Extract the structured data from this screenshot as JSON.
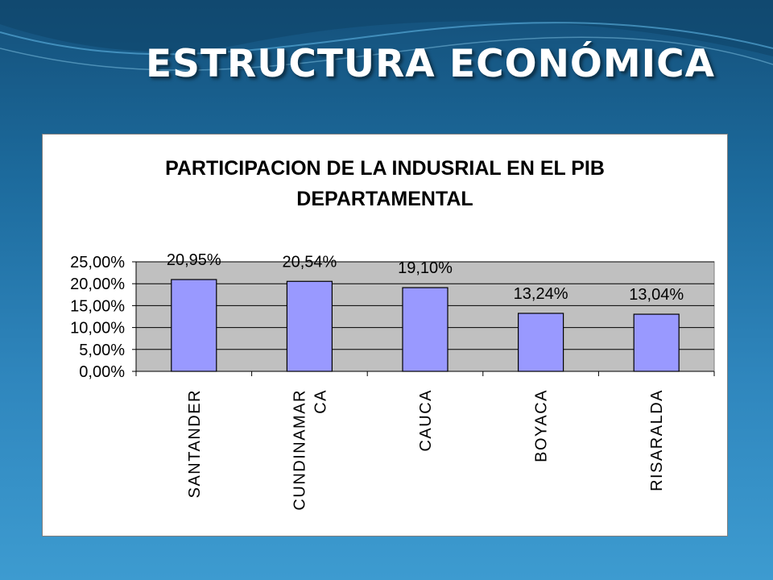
{
  "slide": {
    "title": "ESTRUCTURA ECONÓMICA"
  },
  "colors": {
    "bar_fill": "#9999ff",
    "plot_area": "#c0c0c0",
    "background": "#2f86bd"
  },
  "chart_data": {
    "type": "bar",
    "title_lines": [
      "PARTICIPACION DE LA INDUSRIAL EN EL PIB",
      "DEPARTAMENTAL"
    ],
    "categories": [
      [
        "SANTANDER"
      ],
      [
        "CUNDINAMAR",
        "CA"
      ],
      [
        "CAUCA"
      ],
      [
        "BOYACA"
      ],
      [
        "RISARALDA"
      ]
    ],
    "values": [
      20.95,
      20.54,
      19.1,
      13.24,
      13.04
    ],
    "data_labels": [
      "20,95%",
      "20,54%",
      "19,10%",
      "13,24%",
      "13,04%"
    ],
    "y_ticks": [
      "0,00%",
      "5,00%",
      "10,00%",
      "15,00%",
      "20,00%",
      "25,00%"
    ],
    "ylim": [
      0,
      25
    ],
    "grid": true,
    "legend": false
  }
}
